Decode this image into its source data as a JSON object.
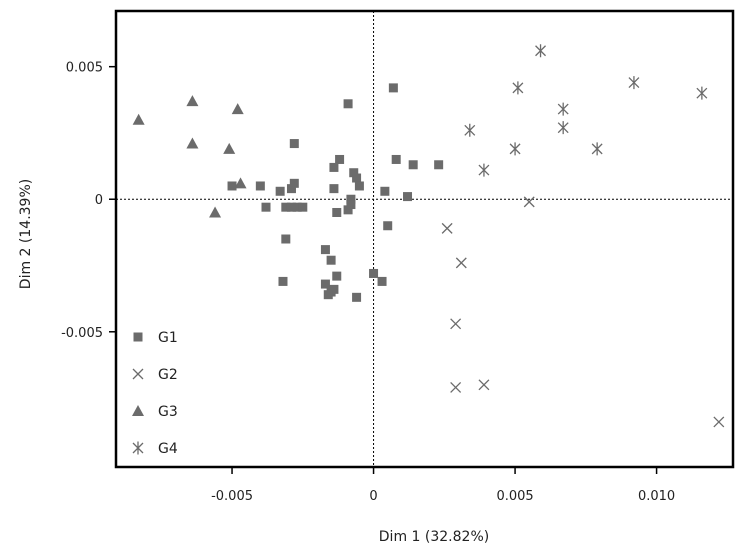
{
  "chart_data": {
    "type": "scatter",
    "title": "",
    "xlabel": "Dim 1 (32.82%)",
    "ylabel": "Dim 2 (14.39%)",
    "xlim": [
      -0.0091,
      0.0127
    ],
    "ylim": [
      -0.0101,
      0.0071
    ],
    "x_ticks": [
      {
        "value": -0.005,
        "label": "-0.005"
      },
      {
        "value": 0,
        "label": "0"
      },
      {
        "value": 0.005,
        "label": "0.005"
      },
      {
        "value": 0.01,
        "label": "0.010"
      }
    ],
    "y_ticks": [
      {
        "value": 0.005,
        "label": "0.005"
      },
      {
        "value": 0,
        "label": "0"
      },
      {
        "value": -0.005,
        "label": "-0.005"
      }
    ],
    "reference_lines": {
      "x": 0,
      "y": 0,
      "style": "dotted"
    },
    "grid": false,
    "legend_position": "bottom-left",
    "colors": {
      "marker": "#6b6b6b",
      "axis": "#000000"
    },
    "series": [
      {
        "name": "G1",
        "marker": "square",
        "points": [
          [
            0.0007,
            0.0042
          ],
          [
            -0.0009,
            0.0036
          ],
          [
            -0.0028,
            0.0021
          ],
          [
            -0.0012,
            0.0015
          ],
          [
            -0.0014,
            0.0012
          ],
          [
            -0.0007,
            0.001
          ],
          [
            -0.0006,
            0.0008
          ],
          [
            -0.0005,
            0.0005
          ],
          [
            0.0008,
            0.0015
          ],
          [
            0.0014,
            0.0013
          ],
          [
            0.0023,
            0.0013
          ],
          [
            0.0004,
            0.0003
          ],
          [
            0.0012,
            0.0001
          ],
          [
            -0.0028,
            0.0006
          ],
          [
            -0.0029,
            0.0004
          ],
          [
            -0.0033,
            0.0003
          ],
          [
            -0.004,
            0.0005
          ],
          [
            -0.005,
            0.0005
          ],
          [
            -0.0038,
            -0.0003
          ],
          [
            -0.0031,
            -0.0003
          ],
          [
            -0.0029,
            -0.0003
          ],
          [
            -0.0027,
            -0.0003
          ],
          [
            -0.0025,
            -0.0003
          ],
          [
            -0.0014,
            0.0004
          ],
          [
            -0.0008,
            0.0
          ],
          [
            -0.0008,
            -0.0002
          ],
          [
            -0.0009,
            -0.0004
          ],
          [
            -0.0013,
            -0.0005
          ],
          [
            0.0005,
            -0.001
          ],
          [
            -0.0031,
            -0.0015
          ],
          [
            -0.0017,
            -0.0019
          ],
          [
            -0.0015,
            -0.0023
          ],
          [
            -0.0013,
            -0.0029
          ],
          [
            -0.0032,
            -0.0031
          ],
          [
            -0.0017,
            -0.0032
          ],
          [
            -0.0014,
            -0.0034
          ],
          [
            -0.0015,
            -0.0035
          ],
          [
            -0.0016,
            -0.0036
          ],
          [
            0.0,
            -0.0028
          ],
          [
            0.0003,
            -0.0031
          ],
          [
            -0.0006,
            -0.0037
          ]
        ]
      },
      {
        "name": "G2",
        "marker": "x",
        "points": [
          [
            0.0026,
            -0.0011
          ],
          [
            0.0055,
            -0.0001
          ],
          [
            0.0031,
            -0.0024
          ],
          [
            0.0029,
            -0.0047
          ],
          [
            0.0029,
            -0.0071
          ],
          [
            0.0039,
            -0.007
          ],
          [
            0.0122,
            -0.0084
          ]
        ]
      },
      {
        "name": "G3",
        "marker": "triangle",
        "points": [
          [
            -0.0083,
            0.003
          ],
          [
            -0.0064,
            0.0037
          ],
          [
            -0.0048,
            0.0034
          ],
          [
            -0.0064,
            0.0021
          ],
          [
            -0.0051,
            0.0019
          ],
          [
            -0.0047,
            0.0006
          ],
          [
            -0.0056,
            -0.0005
          ]
        ]
      },
      {
        "name": "G4",
        "marker": "asterisk",
        "points": [
          [
            0.0059,
            0.0056
          ],
          [
            0.0051,
            0.0042
          ],
          [
            0.0092,
            0.0044
          ],
          [
            0.0116,
            0.004
          ],
          [
            0.0067,
            0.0034
          ],
          [
            0.0034,
            0.0026
          ],
          [
            0.0067,
            0.0027
          ],
          [
            0.005,
            0.0019
          ],
          [
            0.0079,
            0.0019
          ],
          [
            0.0039,
            0.0011
          ]
        ]
      }
    ]
  }
}
